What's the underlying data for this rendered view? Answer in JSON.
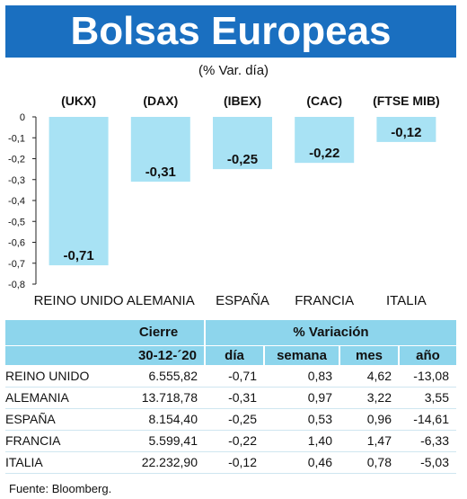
{
  "header": {
    "title": "Bolsas Europeas",
    "subtitle": "(% Var. día)"
  },
  "colors": {
    "title_bg": "#1a6fc0",
    "bar": "#a8e2f4",
    "table_header": "#8dd5ec"
  },
  "chart_data": {
    "type": "bar",
    "categories": [
      "REINO UNIDO",
      "ALEMANIA",
      "ESPAÑA",
      "FRANCIA",
      "ITALIA"
    ],
    "tickers": [
      "(UKX)",
      "(DAX)",
      "(IBEX)",
      "(CAC)",
      "(FTSE MIB)"
    ],
    "values": [
      -0.71,
      -0.31,
      -0.25,
      -0.22,
      -0.12
    ],
    "data_labels": [
      "-0,71",
      "-0,31",
      "-0,25",
      "-0,22",
      "-0,12"
    ],
    "y_ticks": [
      "0",
      "-0,1",
      "-0,2",
      "-0,3",
      "-0,4",
      "-0,5",
      "-0,6",
      "-0,7",
      "-0,8"
    ],
    "ylim": [
      -0.8,
      0
    ],
    "grid": false,
    "legend": "none"
  },
  "table": {
    "header_cierre": "Cierre",
    "header_variacion": "% Variación",
    "subheader_date": "30-12-´20",
    "subheaders": [
      "día",
      "semana",
      "mes",
      "año"
    ],
    "rows": [
      {
        "name": "REINO UNIDO",
        "cierre": "6.555,82",
        "dia": "-0,71",
        "semana": "0,83",
        "mes": "4,62",
        "ano": "-13,08"
      },
      {
        "name": "ALEMANIA",
        "cierre": "13.718,78",
        "dia": "-0,31",
        "semana": "0,97",
        "mes": "3,22",
        "ano": "3,55"
      },
      {
        "name": "ESPAÑA",
        "cierre": "8.154,40",
        "dia": "-0,25",
        "semana": "0,53",
        "mes": "0,96",
        "ano": "-14,61"
      },
      {
        "name": "FRANCIA",
        "cierre": "5.599,41",
        "dia": "-0,22",
        "semana": "1,40",
        "mes": "1,47",
        "ano": "-6,33"
      },
      {
        "name": "ITALIA",
        "cierre": "22.232,90",
        "dia": "-0,12",
        "semana": "0,46",
        "mes": "0,78",
        "ano": "-5,03"
      }
    ]
  },
  "footer": {
    "source": "Fuente: Bloomberg."
  }
}
